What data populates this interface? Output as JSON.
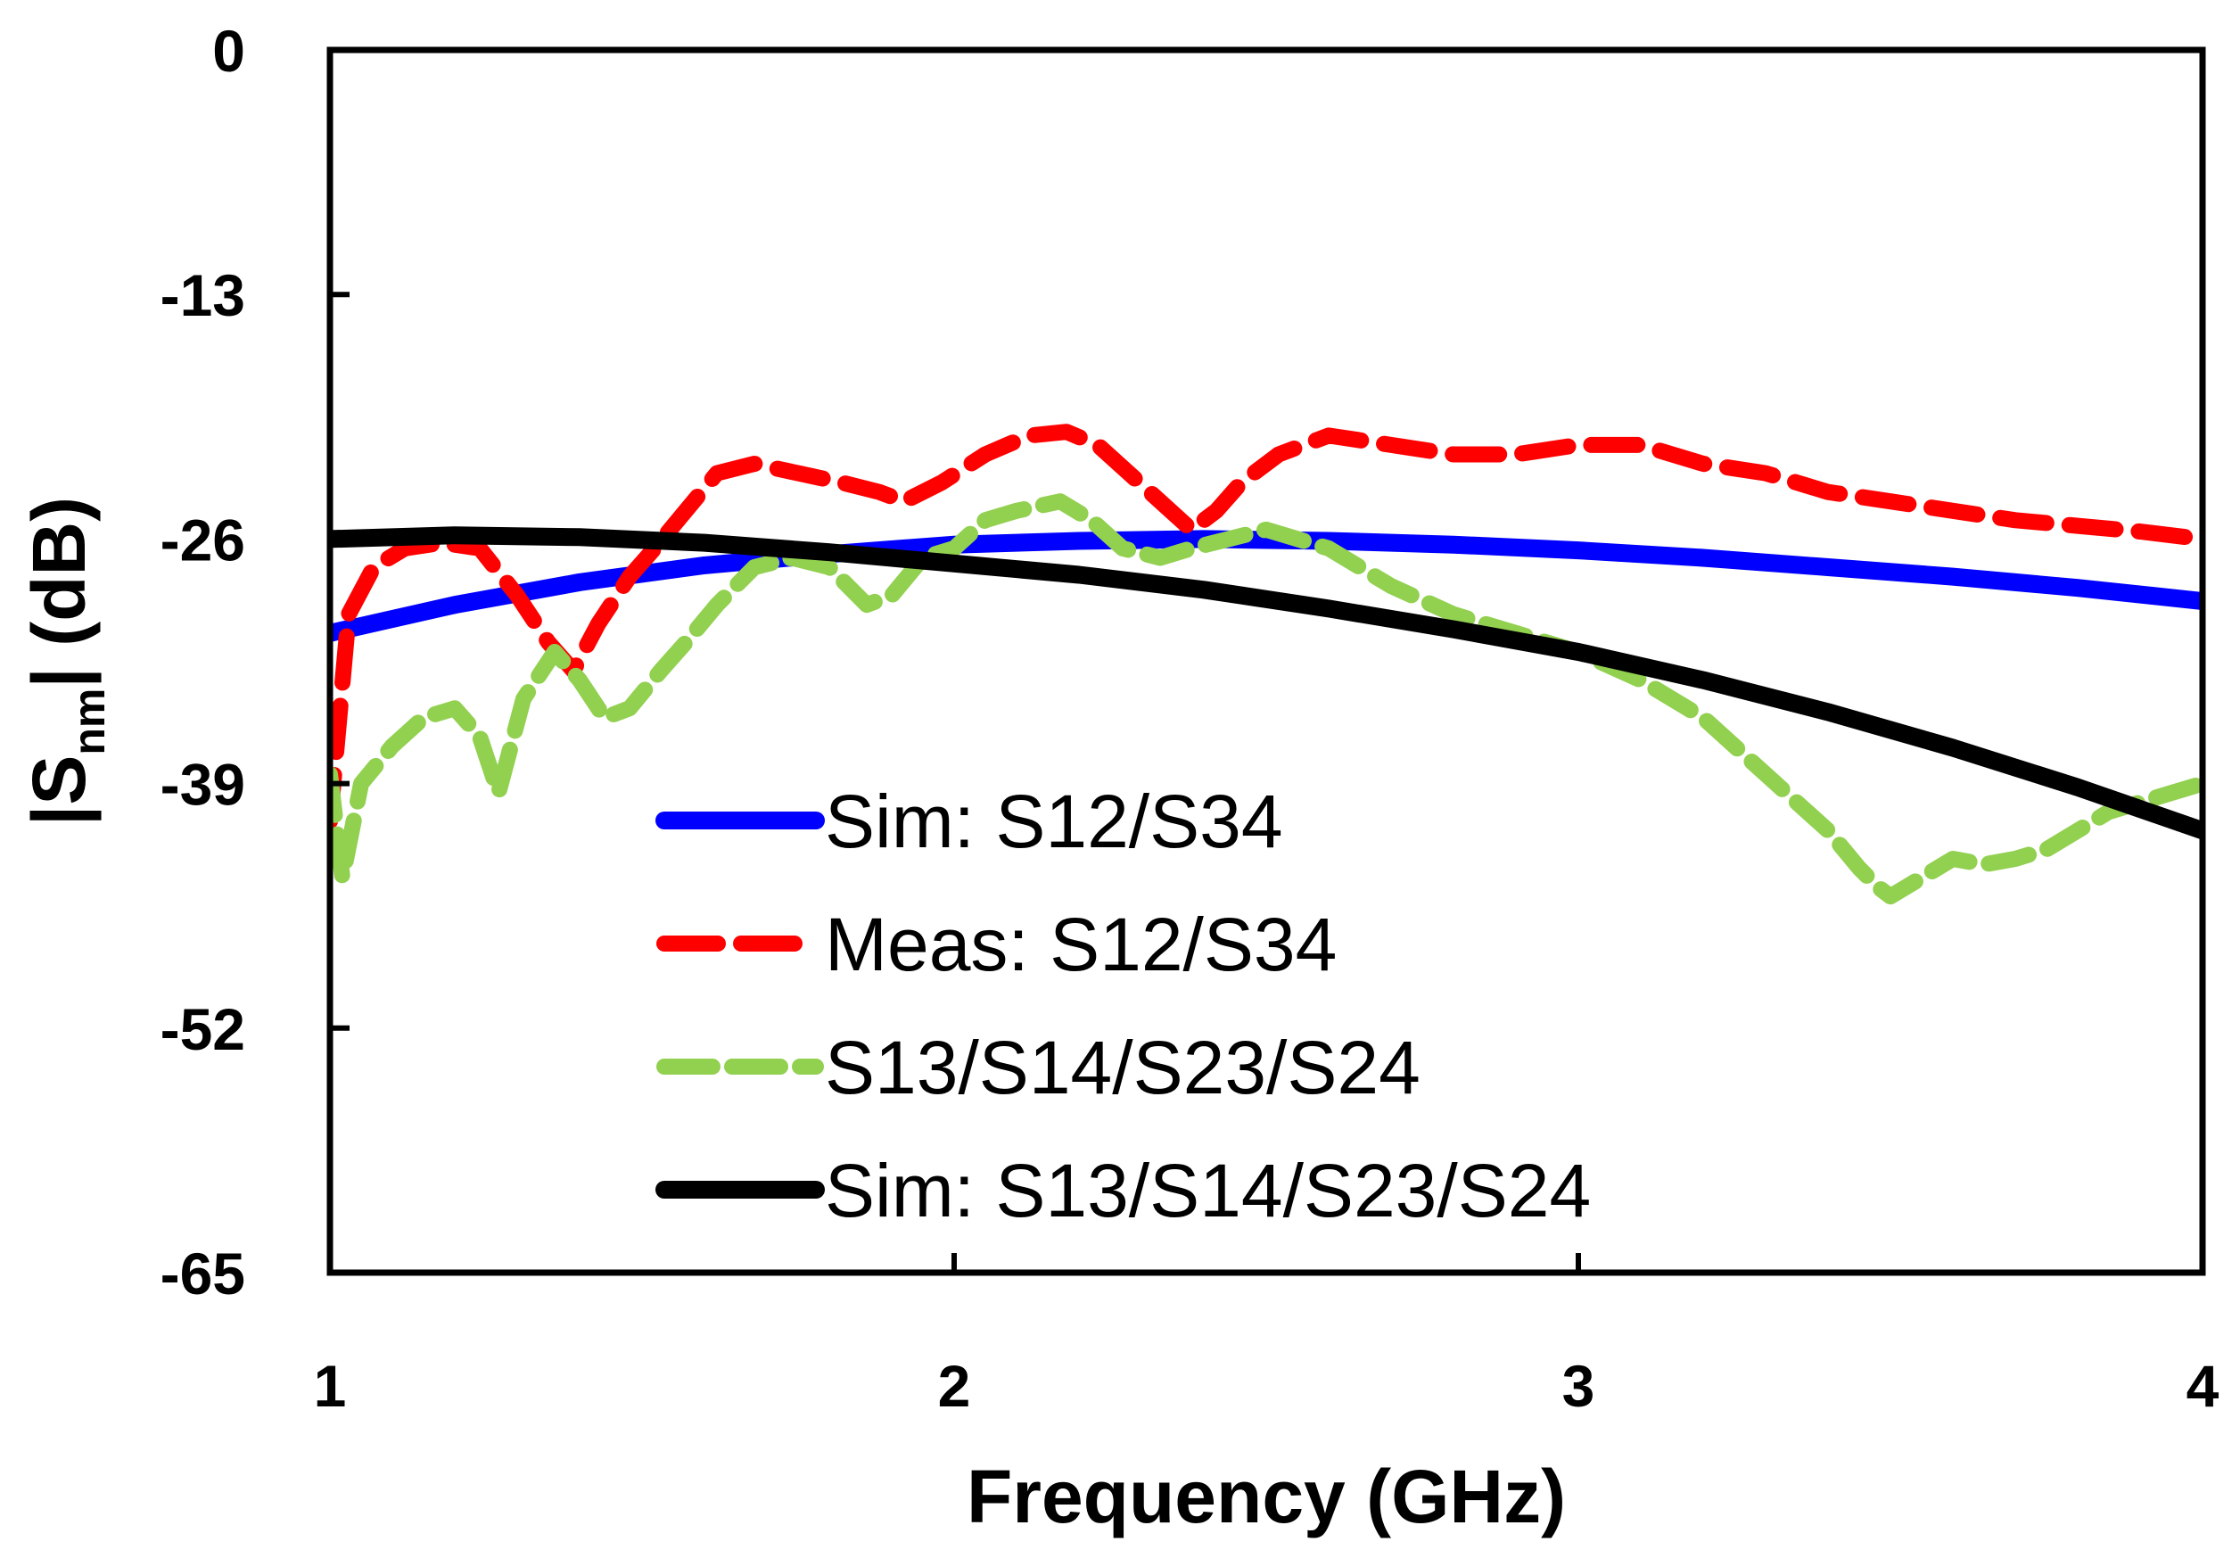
{
  "chart_data": {
    "type": "line",
    "title": "",
    "xlabel": "Frequency (GHz)",
    "ylabel": "|S_nm| (dB)",
    "ylabel_parts": {
      "pre": "|S",
      "sub": "nm",
      "post": "| (dB)"
    },
    "xlim": [
      1,
      4
    ],
    "ylim": [
      -65,
      0
    ],
    "x_ticks": [
      1,
      2,
      3,
      4
    ],
    "y_ticks": [
      0,
      -13,
      -26,
      -39,
      -52,
      -65
    ],
    "x_tick_labels": [
      "1",
      "2",
      "3",
      "4"
    ],
    "y_tick_labels": [
      "0",
      "-13",
      "-26",
      "-39",
      "-52",
      "-65"
    ],
    "grid": false,
    "legend_position": "lower-center",
    "series": [
      {
        "name": "Sim: S12/S34",
        "color": "#0000ff",
        "style": "solid",
        "x": [
          1.0,
          1.2,
          1.4,
          1.6,
          1.8,
          2.0,
          2.2,
          2.4,
          2.6,
          2.8,
          3.0,
          3.2,
          3.4,
          3.6,
          3.8,
          4.0
        ],
        "y": [
          -31.0,
          -29.5,
          -28.3,
          -27.4,
          -26.8,
          -26.3,
          -26.1,
          -26.0,
          -26.1,
          -26.3,
          -26.6,
          -27.0,
          -27.5,
          -28.0,
          -28.6,
          -29.3
        ]
      },
      {
        "name": "Meas: S12/S34",
        "color": "#ff0000",
        "style": "dashed",
        "x": [
          1.0,
          1.03,
          1.07,
          1.12,
          1.18,
          1.24,
          1.3,
          1.35,
          1.39,
          1.43,
          1.48,
          1.52,
          1.57,
          1.62,
          1.68,
          1.75,
          1.82,
          1.88,
          1.92,
          1.98,
          2.05,
          2.12,
          2.18,
          2.23,
          2.28,
          2.33,
          2.38,
          2.42,
          2.46,
          2.52,
          2.6,
          2.7,
          2.8,
          2.9,
          3.0,
          3.1,
          3.2,
          3.3,
          3.4,
          3.5,
          3.6,
          3.7,
          3.8,
          3.9,
          4.0
        ],
        "y": [
          -41.0,
          -30.0,
          -27.5,
          -26.5,
          -26.2,
          -26.5,
          -29.0,
          -31.5,
          -33.0,
          -30.5,
          -28.0,
          -26.5,
          -24.5,
          -22.5,
          -22.0,
          -22.5,
          -23.0,
          -23.5,
          -24.0,
          -23.0,
          -21.5,
          -20.5,
          -20.3,
          -21.0,
          -22.5,
          -24.0,
          -25.5,
          -24.5,
          -23.0,
          -21.5,
          -20.5,
          -21.0,
          -21.5,
          -21.5,
          -21.0,
          -21.0,
          -22.0,
          -22.5,
          -23.5,
          -24.0,
          -24.5,
          -25.0,
          -25.3,
          -25.6,
          -26.0
        ]
      },
      {
        "name": "S13/S14/S23/S24",
        "color": "#92d050",
        "style": "dashed",
        "x": [
          1.0,
          1.02,
          1.05,
          1.1,
          1.15,
          1.2,
          1.24,
          1.27,
          1.31,
          1.36,
          1.4,
          1.44,
          1.48,
          1.53,
          1.57,
          1.62,
          1.68,
          1.74,
          1.8,
          1.86,
          1.9,
          1.95,
          2.0,
          2.05,
          2.1,
          2.17,
          2.22,
          2.27,
          2.33,
          2.38,
          2.44,
          2.5,
          2.55,
          2.6,
          2.65,
          2.7,
          2.8,
          2.9,
          3.0,
          3.1,
          3.2,
          3.3,
          3.4,
          3.45,
          3.48,
          3.5,
          3.55,
          3.6,
          3.65,
          3.7,
          3.75,
          3.8,
          3.85,
          3.9,
          3.95,
          4.0
        ],
        "y": [
          -38.5,
          -44.0,
          -39.0,
          -37.0,
          -35.5,
          -35.0,
          -36.5,
          -39.5,
          -34.5,
          -32.0,
          -33.5,
          -35.5,
          -35.0,
          -33.0,
          -31.5,
          -29.5,
          -27.5,
          -27.0,
          -27.5,
          -29.5,
          -29.0,
          -27.0,
          -26.5,
          -25.0,
          -24.5,
          -24.0,
          -25.0,
          -26.5,
          -27.0,
          -26.5,
          -26.0,
          -25.5,
          -26.0,
          -26.5,
          -27.5,
          -28.5,
          -30.0,
          -31.0,
          -32.0,
          -33.5,
          -35.5,
          -38.5,
          -41.5,
          -43.5,
          -44.5,
          -45.0,
          -44.0,
          -43.0,
          -43.3,
          -43.0,
          -42.5,
          -41.5,
          -40.5,
          -40.0,
          -39.5,
          -39.0
        ]
      },
      {
        "name": "Sim: S13/S14/S23/S24",
        "color": "#000000",
        "style": "solid",
        "x": [
          1.0,
          1.2,
          1.4,
          1.6,
          1.8,
          2.0,
          2.2,
          2.4,
          2.6,
          2.8,
          3.0,
          3.2,
          3.4,
          3.6,
          3.8,
          4.0
        ],
        "y": [
          -26.0,
          -25.8,
          -25.9,
          -26.2,
          -26.7,
          -27.3,
          -27.9,
          -28.7,
          -29.7,
          -30.8,
          -32.0,
          -33.5,
          -35.2,
          -37.1,
          -39.2,
          -41.5
        ]
      }
    ]
  }
}
